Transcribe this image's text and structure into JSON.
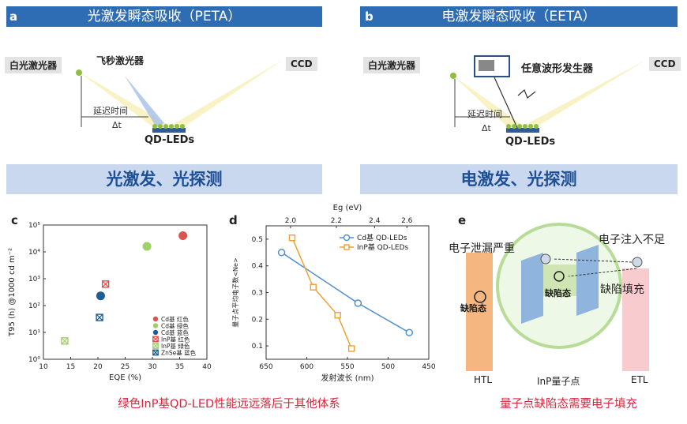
{
  "panel_a": {
    "letter": "a",
    "title": "光激发瞬态吸收（PETA）",
    "white_laser": "白光激光器",
    "fs_laser": "飞秒激光器",
    "ccd": "CCD",
    "delay": "延迟时间",
    "dt": "Δt",
    "device": "QD-LEDs",
    "bottom": "光激发、光探测"
  },
  "panel_b": {
    "letter": "b",
    "title": "电激发瞬态吸收（EETA）",
    "white_laser": "白光激光器",
    "generator": "任意波形发生器",
    "ccd": "CCD",
    "delay": "延迟时间",
    "dt": "Δt",
    "device": "QD-LEDs",
    "bottom": "电激发、光探测"
  },
  "panel_c": {
    "letter": "c",
    "caption": "绿色InP基QD-LED性能远远落后于其他体系"
  },
  "panel_d": {
    "letter": "d"
  },
  "panel_e": {
    "letter": "e",
    "leak": "电子泄漏严重",
    "inject": "电子注入不足",
    "fill": "缺陷填充",
    "defect_left": "缺陷态",
    "defect_center": "缺陷态",
    "htl": "HTL",
    "qd": "InP量子点",
    "etl": "ETL",
    "caption": "量子点缺陷态需要电子填充"
  },
  "chart_data": [
    {
      "type": "scatter",
      "xlabel": "EQE (%)",
      "ylabel": "T95 (h) @1000 cd m⁻²",
      "xlim": [
        10,
        40
      ],
      "ylim": [
        1,
        100000
      ],
      "yscale": "log",
      "x_ticks": [
        "10",
        "15",
        "20",
        "25",
        "30",
        "35",
        "40"
      ],
      "y_ticks": [
        "10⁰",
        "10¹",
        "10²",
        "10³",
        "10⁴",
        "10⁵"
      ],
      "legend_position": "bottom-right",
      "series": [
        {
          "name": "Cd基 红色",
          "color": "#d9534f",
          "marker": "circle",
          "x": [
            35.6
          ],
          "y": [
            40000
          ]
        },
        {
          "name": "Cd基 绿色",
          "color": "#9fcf6b",
          "marker": "circle",
          "x": [
            29.0
          ],
          "y": [
            16000
          ]
        },
        {
          "name": "Cd基 蓝色",
          "color": "#1f5d97",
          "marker": "circle",
          "x": [
            20.5
          ],
          "y": [
            230
          ]
        },
        {
          "name": "InP基 红色",
          "color": "#d9534f",
          "marker": "box-x",
          "x": [
            21.4
          ],
          "y": [
            630
          ]
        },
        {
          "name": "InP基 绿色",
          "color": "#9fcf6b",
          "marker": "box-x",
          "x": [
            13.9
          ],
          "y": [
            4.8
          ]
        },
        {
          "name": "ZnSe基 蓝色",
          "color": "#1f5d97",
          "marker": "box-x",
          "x": [
            20.3
          ],
          "y": [
            36
          ]
        }
      ]
    },
    {
      "type": "line",
      "xlabel": "发射波长 (nm)",
      "ylabel": "量子点平均电子数<Ne>",
      "x2label": "Eg (eV)",
      "xlim": [
        650,
        450
      ],
      "ylim": [
        0.05,
        0.55
      ],
      "x_ticks": [
        "650",
        "600",
        "550",
        "500",
        "450"
      ],
      "x2_ticks": [
        "2.0",
        "2.2",
        "2.4",
        "2.6"
      ],
      "y_ticks": [
        "0.1",
        "0.2",
        "0.3",
        "0.4",
        "0.5"
      ],
      "legend_position": "top-right",
      "series": [
        {
          "name": "Cd基 QD-LEDs",
          "color": "#4f8fcf",
          "marker": "circle",
          "x": [
            631,
            537,
            474
          ],
          "y": [
            0.45,
            0.26,
            0.15
          ]
        },
        {
          "name": "InP基 QD-LEDs",
          "color": "#f0a030",
          "marker": "square",
          "x": [
            618,
            592,
            562,
            545
          ],
          "y": [
            0.505,
            0.32,
            0.215,
            0.09
          ]
        }
      ]
    }
  ]
}
